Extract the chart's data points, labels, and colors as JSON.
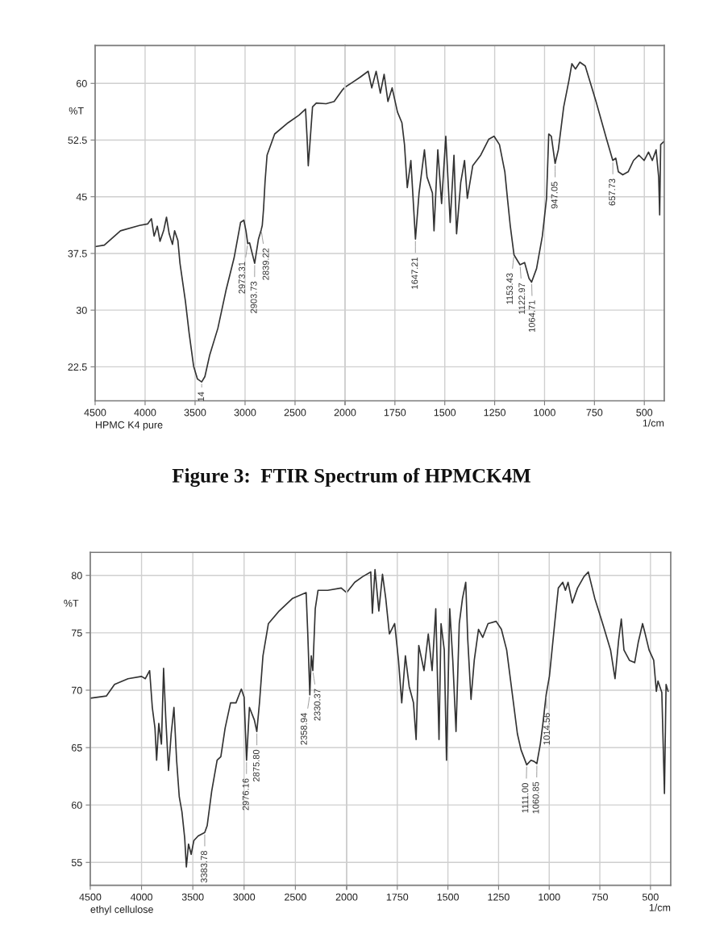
{
  "chart_data": [
    {
      "type": "line",
      "ylabel": "%T",
      "xlim": [
        4500,
        2000
      ],
      "ylim": [
        18,
        65
      ],
      "xticks": [
        4500,
        4000,
        3500,
        3000,
        2500,
        {
          "value": 2000,
          "label": null
        }
      ],
      "yticks": [
        60,
        52.5,
        45,
        37.5,
        30,
        22.5
      ],
      "grid": true,
      "series": [
        {
          "color": "#333333",
          "x": [
            4500,
            4408,
            4246,
            4056,
            3975,
            3937,
            3910,
            3878,
            3851,
            3813,
            3786,
            3759,
            3726,
            3705,
            3672,
            3651,
            3597,
            3559,
            3515,
            3477,
            3434,
            3402,
            3353,
            3272,
            3191,
            3110,
            3045,
            3012,
            2991,
            2973,
            2955,
            2904,
            2866,
            2839,
            2828,
            2815,
            2800,
            2780,
            2704,
            2569,
            2460,
            2395,
            2379,
            2368,
            2352,
            2325,
            2287,
            2190,
            2109,
            2028,
            2000
          ],
          "values": [
            38.4,
            38.6,
            40.5,
            41.2,
            41.4,
            42.1,
            39.8,
            41.1,
            39.1,
            40.6,
            42.3,
            40.1,
            38.7,
            40.5,
            39.2,
            36.2,
            31.2,
            26.9,
            22.6,
            20.9,
            20.5,
            21.2,
            24.1,
            27.6,
            32.6,
            36.9,
            41.6,
            41.9,
            40.5,
            38.8,
            38.9,
            36.2,
            39.4,
            40.6,
            41.2,
            43.4,
            47.0,
            50.5,
            53.3,
            54.8,
            55.8,
            56.6,
            52.6,
            49.1,
            51.9,
            56.9,
            57.4,
            57.3,
            57.6,
            59.1,
            59.5
          ]
        }
      ],
      "annotations": [
        {
          "text": "14",
          "x": 3434,
          "y": 20.5
        },
        {
          "text": "2973.31",
          "x": 2973.31,
          "y": 38.8
        },
        {
          "text": "2903.73",
          "x": 2903.73,
          "y": 36.2
        },
        {
          "text": "2839.22",
          "x": 2839.22,
          "y": 40.6
        },
        "HPMC K4 pure",
        "Figure 3:  FTIR Spectrum of HPMCK4M"
      ]
    },
    {
      "type": "line",
      "xlabel": "1/cm",
      "xlim": [
        2000,
        400
      ],
      "ylim": [
        18,
        65
      ],
      "xticks": [
        2000,
        1750,
        1500,
        1250,
        1000,
        750,
        500
      ],
      "yticks": [
        60,
        52.5,
        45,
        37.5,
        30,
        22.5
      ],
      "grid": true,
      "tick_labels": "x",
      "series": [
        {
          "color": "#333333",
          "x": [
            2000,
            1965,
            1925,
            1884,
            1866,
            1844,
            1823,
            1804,
            1785,
            1764,
            1737,
            1715,
            1702,
            1688,
            1670,
            1647,
            1629,
            1602,
            1589,
            1562,
            1554,
            1535,
            1516,
            1495,
            1473,
            1454,
            1441,
            1420,
            1401,
            1387,
            1360,
            1320,
            1280,
            1253,
            1226,
            1199,
            1186,
            1172,
            1153,
            1123,
            1100,
            1078,
            1065,
            1040,
            1011,
            990,
            979,
            966,
            947,
            931,
            904,
            877,
            863,
            845,
            823,
            796,
            742,
            689,
            658,
            643,
            630,
            608,
            581,
            554,
            527,
            501,
            479,
            460,
            441,
            428,
            423,
            418,
            402
          ],
          "values": [
            59.5,
            60.1,
            60.8,
            61.6,
            59.4,
            61.6,
            58.7,
            61.2,
            57.6,
            59.4,
            56.2,
            54.8,
            51.9,
            46.2,
            49.8,
            39.4,
            45.5,
            51.2,
            47.6,
            45.5,
            40.5,
            51.2,
            44.1,
            53.0,
            41.6,
            50.5,
            40.1,
            46.9,
            49.8,
            44.8,
            49.1,
            50.5,
            52.6,
            53.0,
            51.9,
            48.3,
            44.8,
            41.2,
            37.3,
            36.0,
            36.3,
            34.2,
            33.7,
            35.5,
            39.8,
            44.8,
            53.3,
            53.0,
            49.4,
            51.2,
            56.9,
            60.5,
            62.6,
            61.9,
            62.8,
            62.3,
            57.6,
            52.6,
            49.8,
            50.1,
            48.3,
            47.9,
            48.3,
            49.8,
            50.5,
            49.8,
            50.9,
            49.8,
            51.2,
            47.6,
            42.6,
            51.9,
            52.3
          ]
        }
      ],
      "annotations": [
        {
          "text": "1647.21",
          "x": 1647.21,
          "y": 39.4
        },
        {
          "text": "1153.43",
          "x": 1153.43,
          "y": 37.3
        },
        {
          "text": "1122.97",
          "x": 1122.97,
          "y": 36.0
        },
        {
          "text": "1064.71",
          "x": 1064.71,
          "y": 33.7
        },
        {
          "text": "947.05",
          "x": 947.05,
          "y": 49.4
        },
        {
          "text": "657.73",
          "x": 657.73,
          "y": 49.8
        }
      ]
    },
    {
      "type": "line",
      "ylabel": "%T",
      "xlim": [
        4500,
        2000
      ],
      "ylim": [
        53,
        82
      ],
      "xticks": [
        4500,
        4000,
        3500,
        3000,
        2500,
        {
          "value": 2000,
          "label": null
        }
      ],
      "yticks": [
        80,
        75,
        70,
        65,
        60,
        55
      ],
      "grid": true,
      "series": [
        {
          "color": "#333333",
          "x": [
            4500,
            4342,
            4263,
            4132,
            4000,
            3963,
            3921,
            3895,
            3869,
            3853,
            3832,
            3806,
            3785,
            3764,
            3737,
            3711,
            3684,
            3658,
            3632,
            3606,
            3579,
            3563,
            3542,
            3516,
            3490,
            3448,
            3384,
            3360,
            3316,
            3263,
            3227,
            3185,
            3132,
            3079,
            3027,
            3000,
            2976,
            2948,
            2900,
            2876,
            2850,
            2816,
            2763,
            2658,
            2527,
            2395,
            2379,
            2359,
            2345,
            2330,
            2306,
            2279,
            2185,
            2053,
            2000
          ],
          "values": [
            69.3,
            69.5,
            70.5,
            71.0,
            71.2,
            71.0,
            71.7,
            68.5,
            66.7,
            63.9,
            67.1,
            65.3,
            71.9,
            67.6,
            63.0,
            66.2,
            68.5,
            63.9,
            60.7,
            59.4,
            57.1,
            54.6,
            56.6,
            55.7,
            56.9,
            57.3,
            57.6,
            58.2,
            61.2,
            63.9,
            64.2,
            66.7,
            68.9,
            68.9,
            70.1,
            69.4,
            63.9,
            68.5,
            67.4,
            66.4,
            68.9,
            73.0,
            75.8,
            76.9,
            78.0,
            78.5,
            74.9,
            69.6,
            73.0,
            71.7,
            77.1,
            78.7,
            78.7,
            78.9,
            78.5
          ]
        }
      ],
      "annotations": [
        {
          "text": "3383.78",
          "x": 3383.78,
          "y": 57.6
        },
        {
          "text": "2976.16",
          "x": 2976.16,
          "y": 63.9
        },
        {
          "text": "2875.80",
          "x": 2875.8,
          "y": 66.4
        },
        {
          "text": "2358.94",
          "x": 2358.94,
          "y": 69.6
        },
        {
          "text": "2330.37",
          "x": 2330.37,
          "y": 71.7
        },
        "ethyl cellulose"
      ]
    },
    {
      "type": "line",
      "xlabel": "1/cm",
      "xlim": [
        2000,
        400
      ],
      "ylim": [
        53,
        82
      ],
      "xticks": [
        2000,
        1750,
        1500,
        1250,
        1000,
        750,
        500
      ],
      "yticks": [
        80,
        75,
        70,
        65,
        60,
        55
      ],
      "grid": true,
      "tick_labels": "x",
      "series": [
        {
          "color": "#333333",
          "x": [
            2000,
            1960,
            1920,
            1881,
            1873,
            1860,
            1841,
            1823,
            1807,
            1789,
            1763,
            1744,
            1728,
            1710,
            1691,
            1670,
            1657,
            1644,
            1618,
            1597,
            1578,
            1560,
            1544,
            1534,
            1518,
            1507,
            1491,
            1476,
            1460,
            1444,
            1428,
            1412,
            1402,
            1386,
            1370,
            1349,
            1328,
            1302,
            1262,
            1236,
            1210,
            1183,
            1157,
            1139,
            1111,
            1090,
            1075,
            1061,
            1044,
            1031,
            1015,
            999,
            973,
            955,
            933,
            920,
            907,
            886,
            860,
            828,
            807,
            775,
            736,
            697,
            675,
            657,
            644,
            631,
            604,
            578,
            560,
            539,
            526,
            507,
            484,
            471,
            463,
            444,
            431,
            423,
            413
          ],
          "values": [
            78.5,
            79.4,
            79.9,
            80.3,
            76.7,
            80.5,
            76.9,
            80.1,
            78.0,
            74.9,
            75.8,
            72.6,
            68.9,
            73.0,
            70.3,
            68.9,
            65.7,
            73.9,
            71.7,
            74.9,
            71.7,
            77.1,
            65.7,
            75.8,
            73.5,
            63.9,
            77.1,
            72.6,
            66.4,
            75.8,
            78.0,
            79.4,
            74.4,
            69.2,
            72.6,
            75.3,
            74.6,
            75.8,
            76.0,
            75.3,
            73.5,
            69.8,
            66.2,
            64.8,
            63.5,
            63.9,
            63.8,
            63.6,
            65.3,
            67.1,
            69.6,
            71.2,
            75.8,
            78.9,
            79.4,
            78.7,
            79.4,
            77.6,
            78.9,
            79.9,
            80.3,
            78.0,
            75.8,
            73.5,
            71.0,
            74.4,
            76.2,
            73.5,
            72.6,
            72.4,
            74.2,
            75.8,
            74.9,
            73.5,
            72.6,
            69.9,
            70.8,
            69.8,
            61.0,
            70.5,
            69.9
          ]
        }
      ],
      "annotations": [
        {
          "text": "1111.00",
          "x": 1111.0,
          "y": 63.5
        },
        {
          "text": "1060.85",
          "x": 1060.85,
          "y": 63.6
        },
        {
          "text": "1014.56",
          "x": 1014.56,
          "y": 69.6
        }
      ]
    }
  ]
}
